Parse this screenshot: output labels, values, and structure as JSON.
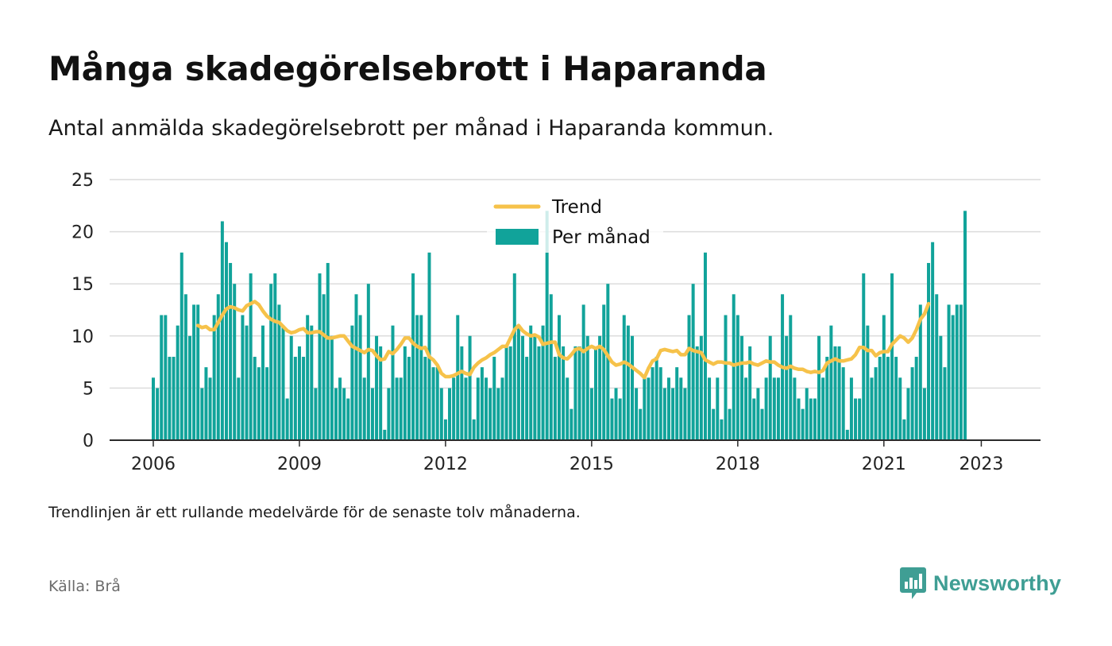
{
  "title": "Många skadegörelsebrott i Haparanda",
  "subtitle": "Antal anmälda skadegörelsebrott per månad i Haparanda kommun.",
  "footnote": "Trendlinjen är ett rullande medelvärde för de senaste tolv månaderna.",
  "source": "Källa: Brå",
  "brand": {
    "name": "Newsworthy",
    "icon": "bar-chart-icon"
  },
  "colors": {
    "bars": "#11a39a",
    "trend": "#f6c24a",
    "grid": "#dcdcdc",
    "axis": "#2b2b2b",
    "brand": "#3f9e94"
  },
  "chart_data": {
    "type": "bar",
    "x_start": "2006-01",
    "x_end": "2023-06",
    "ylim": [
      0,
      25
    ],
    "yticks": [
      0,
      5,
      10,
      15,
      20,
      25
    ],
    "xticks": [
      "2006",
      "2009",
      "2012",
      "2015",
      "2018",
      "2021",
      "2023"
    ],
    "grid": true,
    "legend_position": "top-center",
    "series": [
      {
        "name": "Per månad",
        "type": "bar",
        "values": [
          6,
          5,
          12,
          12,
          8,
          8,
          11,
          18,
          14,
          10,
          13,
          13,
          5,
          7,
          6,
          12,
          14,
          21,
          19,
          17,
          15,
          6,
          12,
          11,
          16,
          8,
          7,
          11,
          7,
          15,
          16,
          13,
          11,
          4,
          10,
          8,
          9,
          8,
          12,
          11,
          5,
          16,
          14,
          17,
          10,
          5,
          6,
          5,
          4,
          11,
          14,
          12,
          6,
          15,
          5,
          10,
          9,
          1,
          5,
          11,
          6,
          6,
          9,
          8,
          16,
          12,
          12,
          8,
          18,
          7,
          7,
          5,
          2,
          5,
          6,
          12,
          9,
          6,
          10,
          2,
          6,
          7,
          6,
          5,
          8,
          5,
          6,
          9,
          9,
          16,
          11,
          10,
          8,
          11,
          10,
          9,
          11,
          22,
          14,
          8,
          12,
          9,
          6,
          3,
          9,
          9,
          13,
          10,
          5,
          9,
          10,
          13,
          15,
          4,
          5,
          4,
          12,
          11,
          10,
          5,
          3,
          6,
          6,
          7,
          8,
          7,
          5,
          6,
          5,
          7,
          6,
          5,
          12,
          15,
          9,
          10,
          18,
          6,
          3,
          6,
          2,
          12,
          3,
          14,
          12,
          10,
          6,
          9,
          4,
          5,
          3,
          6,
          10,
          6,
          6,
          14,
          10,
          12,
          6,
          4,
          3,
          5,
          4,
          4,
          10,
          6,
          8,
          11,
          9,
          9,
          7,
          1,
          6,
          4,
          4,
          16,
          11,
          6,
          7,
          8,
          12,
          8,
          16,
          8,
          6,
          2,
          5,
          7,
          8,
          13,
          5,
          17,
          19,
          14,
          10,
          7,
          13,
          12,
          13,
          13,
          22
        ],
        "xlabels": []
      },
      {
        "name": "Trend",
        "type": "line",
        "start_index": 11,
        "values": [
          11.0,
          10.8,
          10.9,
          10.6,
          10.6,
          11.3,
          12.0,
          12.6,
          12.8,
          12.7,
          12.5,
          12.4,
          12.9,
          13.1,
          13.3,
          13.0,
          12.4,
          11.9,
          11.6,
          11.4,
          11.3,
          10.9,
          10.5,
          10.3,
          10.4,
          10.6,
          10.7,
          10.3,
          10.3,
          10.4,
          10.4,
          10.1,
          9.8,
          9.8,
          9.9,
          10.0,
          10.0,
          9.5,
          9.0,
          8.8,
          8.6,
          8.4,
          8.7,
          8.6,
          8.1,
          7.7,
          7.8,
          8.5,
          8.3,
          8.7,
          9.2,
          9.8,
          9.8,
          9.3,
          9.0,
          8.8,
          8.9,
          8.0,
          7.7,
          7.2,
          6.4,
          6.1,
          6.1,
          6.2,
          6.4,
          6.6,
          6.4,
          6.3,
          7.0,
          7.4,
          7.7,
          7.9,
          8.2,
          8.4,
          8.7,
          9.0,
          9.0,
          9.8,
          10.6,
          11.0,
          10.5,
          10.2,
          10.0,
          10.1,
          9.9,
          9.2,
          9.3,
          9.4,
          9.4,
          8.2,
          7.9,
          7.8,
          8.2,
          8.7,
          8.8,
          8.5,
          8.8,
          9.0,
          8.8,
          9.0,
          8.7,
          8.1,
          7.5,
          7.2,
          7.3,
          7.5,
          7.3,
          7.0,
          6.7,
          6.4,
          6.0,
          6.9,
          7.6,
          7.8,
          8.6,
          8.7,
          8.6,
          8.5,
          8.6,
          8.2,
          8.2,
          8.8,
          8.6,
          8.5,
          8.4,
          7.7,
          7.5,
          7.3,
          7.5,
          7.5,
          7.4,
          7.4,
          7.2,
          7.3,
          7.4,
          7.4,
          7.5,
          7.3,
          7.2,
          7.4,
          7.6,
          7.5,
          7.5,
          7.2,
          7.0,
          6.9,
          7.1,
          6.9,
          6.8,
          6.8,
          6.6,
          6.5,
          6.6,
          6.5,
          6.7,
          7.4,
          7.6,
          7.8,
          7.6,
          7.6,
          7.7,
          7.8,
          8.2,
          8.9,
          8.9,
          8.6,
          8.6,
          8.1,
          8.4,
          8.5,
          8.5,
          9.2,
          9.6,
          10.0,
          9.8,
          9.4,
          9.8,
          10.6,
          11.6,
          12.1,
          13.1
        ]
      }
    ]
  }
}
